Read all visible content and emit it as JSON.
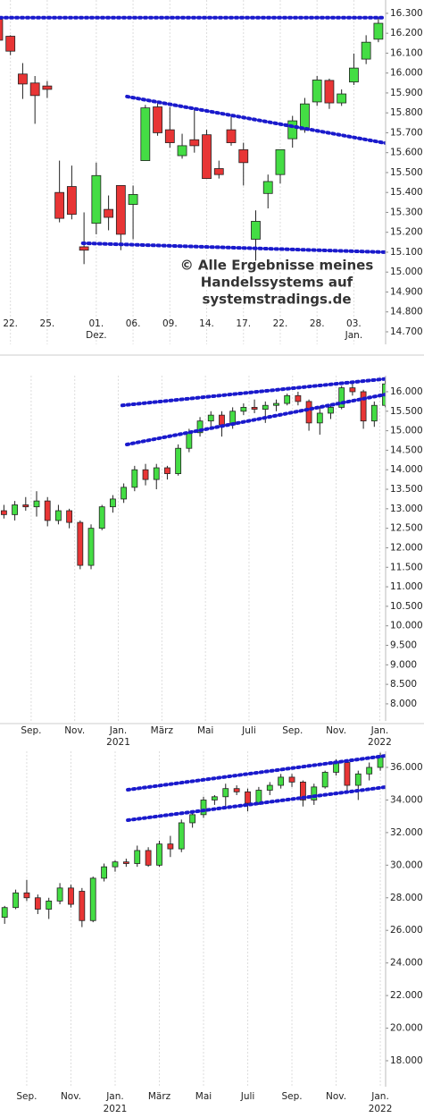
{
  "chart_data": [
    {
      "type": "candlestick",
      "x": [
        0,
        1,
        2,
        3,
        4,
        5,
        6,
        7,
        8,
        9,
        10,
        11,
        12,
        13,
        14,
        15,
        16,
        17,
        18,
        19,
        20,
        21,
        22,
        23,
        24,
        25,
        26,
        27,
        28,
        29,
        30,
        31
      ],
      "open": [
        16270,
        16185,
        15995,
        15950,
        15935,
        15400,
        15430,
        15127,
        15245,
        15315,
        15435,
        15340,
        15560,
        15830,
        15715,
        15585,
        15665,
        15690,
        15520,
        15715,
        15615,
        15165,
        15395,
        15490,
        15670,
        15715,
        15855,
        15963,
        15850,
        15955,
        16070,
        16170
      ],
      "high": [
        16290,
        16190,
        16050,
        15985,
        15960,
        15560,
        15535,
        15300,
        15550,
        15385,
        15435,
        15435,
        15840,
        15860,
        15830,
        15695,
        15820,
        15715,
        15560,
        15790,
        15650,
        15310,
        15490,
        15615,
        15785,
        15875,
        15985,
        15972,
        15918,
        16098,
        16190,
        16278
      ],
      "low": [
        16140,
        16090,
        15870,
        15745,
        15875,
        15250,
        15265,
        15040,
        15190,
        15210,
        15110,
        15165,
        15560,
        15685,
        15625,
        15570,
        15600,
        15470,
        15470,
        15635,
        15435,
        15055,
        15320,
        15445,
        15625,
        15700,
        15835,
        15820,
        15835,
        15940,
        16045,
        16155
      ],
      "close": [
        16165,
        16110,
        15945,
        15887,
        15918,
        15270,
        15290,
        15110,
        15485,
        15275,
        15190,
        15390,
        15825,
        15700,
        15650,
        15635,
        15635,
        15470,
        15490,
        15650,
        15550,
        15255,
        15455,
        15615,
        15760,
        15845,
        15965,
        15850,
        15895,
        16025,
        16155,
        16250
      ],
      "up_color": "#44dd44",
      "down_color": "#e83535",
      "trendline_color": "#1a1acc",
      "xlim": [
        0.15,
        31.59
      ],
      "ylim": [
        14637,
        16367
      ],
      "xticks": [
        {
          "value": 1,
          "label": "22."
        },
        {
          "value": 4,
          "label": "25."
        },
        {
          "value": 8,
          "label": "01."
        },
        {
          "value": 11,
          "label": "06."
        },
        {
          "value": 14,
          "label": "09."
        },
        {
          "value": 17,
          "label": "14."
        },
        {
          "value": 20,
          "label": "17."
        },
        {
          "value": 23,
          "label": "22."
        },
        {
          "value": 26,
          "label": "28."
        },
        {
          "value": 29,
          "label": "03."
        }
      ],
      "xsublabels": [
        {
          "value": 8,
          "label": "Dez."
        },
        {
          "value": 29,
          "label": "Jan."
        }
      ],
      "yticks": [
        {
          "value": 14700,
          "label": "14.700"
        },
        {
          "value": 14800,
          "label": "14.800"
        },
        {
          "value": 14900,
          "label": "14.900"
        },
        {
          "value": 15000,
          "label": "15.000"
        },
        {
          "value": 15100,
          "label": "15.100"
        },
        {
          "value": 15200,
          "label": "15.200"
        },
        {
          "value": 15300,
          "label": "15.300"
        },
        {
          "value": 15400,
          "label": "15.400"
        },
        {
          "value": 15500,
          "label": "15.500"
        },
        {
          "value": 15600,
          "label": "15.600"
        },
        {
          "value": 15700,
          "label": "15.700"
        },
        {
          "value": 15800,
          "label": "15.800"
        },
        {
          "value": 15900,
          "label": "15.900"
        },
        {
          "value": 16000,
          "label": "16.000"
        },
        {
          "value": 16100,
          "label": "16.100"
        },
        {
          "value": 16200,
          "label": "16.200"
        },
        {
          "value": 16300,
          "label": "16.300"
        }
      ],
      "trendlines": [
        {
          "x": [
            0.15,
            31.59
          ],
          "y": [
            16278,
            16278
          ]
        },
        {
          "x": [
            10.5,
            31.59
          ],
          "y": [
            15882,
            15648
          ]
        },
        {
          "x": [
            6.9,
            31.59
          ],
          "y": [
            15145,
            15100
          ]
        }
      ],
      "annotation": [
        "© Alle Ergebnisse meines",
        "Handelssystems auf",
        "systemstradings.de"
      ]
    },
    {
      "type": "candlestick",
      "x": [
        -1.25,
        -0.75,
        -0.25,
        0.25,
        0.75,
        1.25,
        1.75,
        2.25,
        2.75,
        3.25,
        3.75,
        4.25,
        4.75,
        5.25,
        5.75,
        6.25,
        6.75,
        7.25,
        7.75,
        8.25,
        8.75,
        9.25,
        9.75,
        10.25,
        10.75,
        11.25,
        11.75,
        12.25,
        12.75,
        13.25,
        13.75,
        14.25,
        14.75,
        15.25,
        15.75,
        16.25
      ],
      "open": [
        12950,
        12850,
        13100,
        13050,
        13200,
        12700,
        12950,
        12650,
        11550,
        12500,
        13050,
        13250,
        13550,
        14000,
        13750,
        14050,
        13900,
        14550,
        14950,
        15250,
        15400,
        15150,
        15500,
        15600,
        15550,
        15650,
        15700,
        15900,
        15750,
        15200,
        15450,
        15600,
        16100,
        16000,
        15250,
        15650
      ],
      "high": [
        13100,
        13200,
        13300,
        13450,
        13300,
        13100,
        13000,
        12700,
        12600,
        13100,
        13350,
        13650,
        14100,
        14150,
        14150,
        14100,
        14650,
        15050,
        15350,
        15500,
        15500,
        15600,
        15700,
        15800,
        15750,
        15800,
        15950,
        16000,
        15800,
        15600,
        15700,
        16150,
        16250,
        16050,
        15750,
        16300
      ],
      "low": [
        12750,
        12700,
        12950,
        12800,
        12550,
        12600,
        12500,
        11450,
        11450,
        12450,
        12900,
        13150,
        13450,
        13600,
        13500,
        13750,
        13850,
        14450,
        14850,
        15100,
        14850,
        15050,
        15400,
        15450,
        15200,
        15500,
        15650,
        15650,
        15000,
        14900,
        15300,
        15550,
        15900,
        15050,
        15100,
        15600
      ],
      "close": [
        12850,
        13100,
        13050,
        13200,
        12700,
        12950,
        12650,
        11550,
        12500,
        13050,
        13250,
        13550,
        14000,
        13750,
        14050,
        13900,
        14550,
        14950,
        15250,
        15400,
        15150,
        15500,
        15600,
        15550,
        15650,
        15700,
        15900,
        15750,
        15200,
        15450,
        15600,
        16100,
        16000,
        15250,
        15650,
        16200
      ],
      "up_color": "#44dd44",
      "down_color": "#e83535",
      "trendline_color": "#1a1acc",
      "xlim": [
        -1.43,
        16.27
      ],
      "ylim": [
        7563,
        16412
      ],
      "xticks": [
        {
          "value": 0,
          "label": "Sep."
        },
        {
          "value": 2,
          "label": "Nov."
        },
        {
          "value": 4,
          "label": "Jan."
        },
        {
          "value": 6,
          "label": "März"
        },
        {
          "value": 8,
          "label": "Mai"
        },
        {
          "value": 10,
          "label": "Juli"
        },
        {
          "value": 12,
          "label": "Sep."
        },
        {
          "value": 14,
          "label": "Nov."
        },
        {
          "value": 16,
          "label": "Jan."
        }
      ],
      "xsublabels": [
        {
          "value": 4,
          "label": "2021"
        },
        {
          "value": 16,
          "label": "2022"
        }
      ],
      "yticks": [
        {
          "value": 8000,
          "label": "8.000"
        },
        {
          "value": 8500,
          "label": "8.500"
        },
        {
          "value": 9000,
          "label": "9.000"
        },
        {
          "value": 9500,
          "label": "9.500"
        },
        {
          "value": 10000,
          "label": "10.000"
        },
        {
          "value": 10500,
          "label": "10.500"
        },
        {
          "value": 11000,
          "label": "11.000"
        },
        {
          "value": 11500,
          "label": "11.500"
        },
        {
          "value": 12000,
          "label": "12.000"
        },
        {
          "value": 12500,
          "label": "12.500"
        },
        {
          "value": 13000,
          "label": "13.000"
        },
        {
          "value": 13500,
          "label": "13.500"
        },
        {
          "value": 14000,
          "label": "14.000"
        },
        {
          "value": 14500,
          "label": "14.500"
        },
        {
          "value": 15000,
          "label": "15.000"
        },
        {
          "value": 15500,
          "label": "15.500"
        },
        {
          "value": 16000,
          "label": "16.000"
        }
      ],
      "trendlines": [
        {
          "x": [
            4.18,
            16.27
          ],
          "y": [
            15650,
            16330
          ]
        },
        {
          "x": [
            4.39,
            16.27
          ],
          "y": [
            14647,
            15931
          ]
        }
      ]
    },
    {
      "type": "candlestick",
      "x": [
        -1,
        -0.5,
        0,
        0.5,
        1,
        1.5,
        2,
        2.5,
        3,
        3.5,
        4,
        4.5,
        5,
        5.5,
        6,
        6.5,
        7,
        7.5,
        8,
        8.5,
        9,
        9.5,
        10,
        10.5,
        11,
        11.5,
        12,
        12.5,
        13,
        13.5,
        14,
        14.5,
        15,
        15.5,
        16
      ],
      "open": [
        26800,
        27400,
        28300,
        28000,
        27300,
        27800,
        28600,
        28400,
        26600,
        29200,
        29900,
        30200,
        30100,
        30900,
        30000,
        31300,
        31000,
        32600,
        33100,
        34000,
        34200,
        34700,
        34500,
        33800,
        34600,
        34900,
        35400,
        35100,
        34000,
        34800,
        35700,
        36300,
        34900,
        35600,
        36000
      ],
      "high": [
        27500,
        28500,
        29100,
        28200,
        28000,
        28900,
        28800,
        28600,
        29300,
        30100,
        30300,
        30400,
        31200,
        31100,
        31500,
        31800,
        32800,
        33300,
        34200,
        34300,
        35000,
        34900,
        34700,
        34800,
        35100,
        35600,
        35600,
        35200,
        35000,
        35800,
        36500,
        36400,
        35800,
        36300,
        36900
      ],
      "low": [
        26400,
        27300,
        27800,
        27000,
        26700,
        27600,
        27400,
        26200,
        26500,
        29000,
        29600,
        29900,
        29900,
        29900,
        29900,
        30500,
        30800,
        32300,
        32900,
        33700,
        33500,
        34300,
        33300,
        33700,
        34300,
        34700,
        34800,
        33600,
        33700,
        34700,
        35500,
        34500,
        34000,
        35200,
        35800
      ],
      "close": [
        27400,
        28300,
        28000,
        27300,
        27800,
        28600,
        27600,
        26600,
        29200,
        29900,
        30200,
        30100,
        30900,
        30000,
        31300,
        31000,
        32600,
        33100,
        34000,
        34200,
        34700,
        34500,
        33800,
        34600,
        34900,
        35400,
        35100,
        34000,
        34800,
        35700,
        36300,
        34900,
        35600,
        36000,
        36700
      ],
      "up_color": "#44dd44",
      "down_color": "#e83535",
      "trendline_color": "#1a1acc",
      "xlim": [
        -1.21,
        16.24
      ],
      "ylim": [
        16407,
        36988
      ],
      "xticks": [
        {
          "value": 0,
          "label": "Sep."
        },
        {
          "value": 2,
          "label": "Nov."
        },
        {
          "value": 4,
          "label": "Jan."
        },
        {
          "value": 6,
          "label": "März"
        },
        {
          "value": 8,
          "label": "Mai"
        },
        {
          "value": 10,
          "label": "Juli"
        },
        {
          "value": 12,
          "label": "Sep."
        },
        {
          "value": 14,
          "label": "Nov."
        },
        {
          "value": 16,
          "label": "Jan."
        }
      ],
      "xsublabels": [
        {
          "value": 4,
          "label": "2021"
        },
        {
          "value": 16,
          "label": "2022"
        }
      ],
      "yticks": [
        {
          "value": 18000,
          "label": "18.000"
        },
        {
          "value": 20000,
          "label": "20.000"
        },
        {
          "value": 22000,
          "label": "22.000"
        },
        {
          "value": 24000,
          "label": "24.000"
        },
        {
          "value": 26000,
          "label": "26.000"
        },
        {
          "value": 28000,
          "label": "28.000"
        },
        {
          "value": 30000,
          "label": "30.000"
        },
        {
          "value": 32000,
          "label": "32.000"
        },
        {
          "value": 34000,
          "label": "34.000"
        },
        {
          "value": 36000,
          "label": "36.000"
        }
      ],
      "trendlines": [
        {
          "x": [
            4.57,
            16.24
          ],
          "y": [
            34628,
            36713
          ]
        },
        {
          "x": [
            4.57,
            16.24
          ],
          "y": [
            32762,
            34793
          ]
        }
      ]
    }
  ]
}
